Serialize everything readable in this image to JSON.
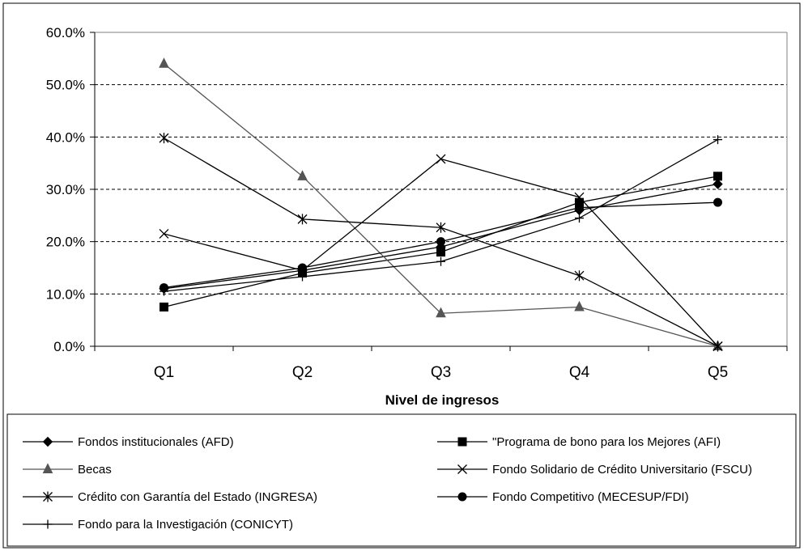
{
  "chart_data": {
    "type": "line",
    "title": "",
    "xlabel": "Nivel de ingresos",
    "ylabel": "",
    "categories": [
      "Q1",
      "Q2",
      "Q3",
      "Q4",
      "Q5"
    ],
    "ylim": [
      0,
      0.6
    ],
    "y_ticks": [
      {
        "value": 0.0,
        "label": "0.0%"
      },
      {
        "value": 0.1,
        "label": "10.0%"
      },
      {
        "value": 0.2,
        "label": "20.0%"
      },
      {
        "value": 0.3,
        "label": "30.0%"
      },
      {
        "value": 0.4,
        "label": "40.0%"
      },
      {
        "value": 0.5,
        "label": "50.0%"
      },
      {
        "value": 0.6,
        "label": "60.0%"
      }
    ],
    "grid": "horizontal dashed",
    "legend_position": "bottom",
    "series": [
      {
        "name": "Fondos institucionales (AFD)",
        "marker": "diamond",
        "color": "#000000",
        "values": [
          0.11,
          0.145,
          0.19,
          0.26,
          0.31
        ]
      },
      {
        "name": "\"Programa de bono para los Mejores (AFI)",
        "marker": "square",
        "color": "#000000",
        "values": [
          0.075,
          0.14,
          0.18,
          0.275,
          0.325
        ]
      },
      {
        "name": "Becas",
        "marker": "triangle",
        "color": "#555555",
        "values": [
          0.54,
          0.325,
          0.063,
          0.075,
          0.0
        ]
      },
      {
        "name": "Fondo Solidario de Crédito Universitario (FSCU)",
        "marker": "x",
        "color": "#000000",
        "values": [
          0.215,
          0.145,
          0.358,
          0.285,
          0.0
        ]
      },
      {
        "name": "Crédito con Garantía del Estado (INGRESA)",
        "marker": "star",
        "color": "#000000",
        "values": [
          0.398,
          0.243,
          0.227,
          0.135,
          0.0
        ]
      },
      {
        "name": "Fondo Competitivo (MECESUP/FDI)",
        "marker": "circle",
        "color": "#000000",
        "values": [
          0.112,
          0.15,
          0.2,
          0.265,
          0.275
        ]
      },
      {
        "name": "Fondo para la Investigación (CONICYT)",
        "marker": "plus",
        "color": "#000000",
        "values": [
          0.105,
          0.133,
          0.162,
          0.245,
          0.395
        ]
      }
    ]
  }
}
